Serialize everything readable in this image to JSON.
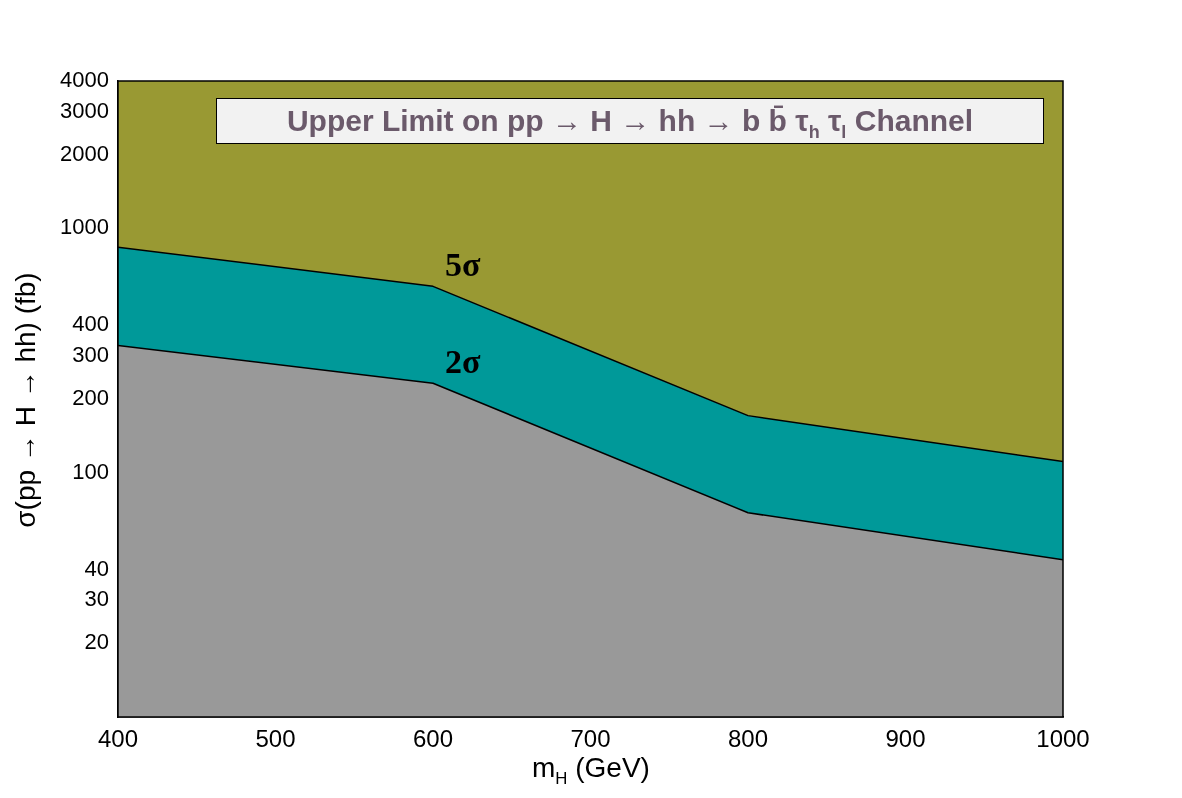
{
  "chart_data": {
    "type": "area",
    "title": "Upper Limit on pp → H → hh → b b̄ τ$_{h}$ τ$_{l}$ Channel",
    "xlabel": "m$_{H}$ (GeV)",
    "ylabel": "σ(pp → H → hh) (fb)",
    "x": [
      400,
      600,
      800,
      1000
    ],
    "series": [
      {
        "name": "2σ",
        "color": "#999999",
        "values": [
          331,
          232,
          68.5,
          44
        ]
      },
      {
        "name": "5σ",
        "color": "#009999",
        "values": [
          836,
          578,
          171,
          111
        ]
      },
      {
        "color": "#999933",
        "values": [
          4000,
          4000,
          4000,
          4000
        ]
      }
    ],
    "log": "y",
    "xlim": [
      400,
      1000
    ],
    "xticks": [
      400,
      500,
      600,
      700,
      800,
      900,
      1000
    ],
    "ylim": [
      10,
      4000
    ],
    "yticks": [
      20,
      30,
      40,
      100,
      200,
      300,
      400,
      1000,
      2000,
      3000,
      4000
    ],
    "grid": false,
    "legend": false
  }
}
